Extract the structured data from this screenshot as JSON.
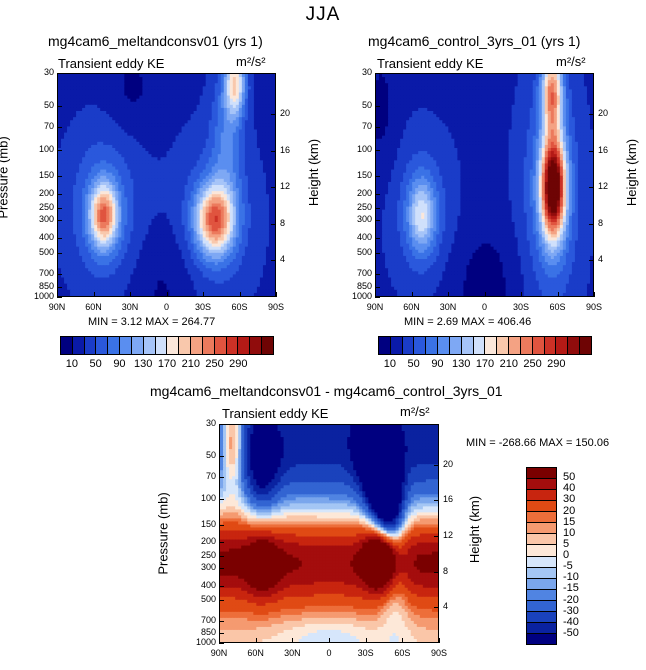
{
  "figure_title": "JJA",
  "chart_data": [
    {
      "type": "heatmap",
      "title": "mg4cam6_meltandconsv01 (yrs 1)",
      "subtitle": "Transient eddy KE",
      "units": "m²/s²",
      "ylabel_left": "Pressure (mb)",
      "ylabel_right": "Height (km)",
      "x_ticks": [
        "90N",
        "60N",
        "30N",
        "0",
        "30S",
        "60S",
        "90S"
      ],
      "y_ticks_left": [
        "30",
        "50",
        "70",
        "100",
        "150",
        "200",
        "250",
        "300",
        "400",
        "500",
        "700",
        "850",
        "1000"
      ],
      "y_ticks_right": [
        "20",
        "16",
        "12",
        "8",
        "4"
      ],
      "stats": "MIN =   3.12   MAX = 264.77",
      "features": [
        {
          "lat": 52,
          "p": 280,
          "value": 245
        },
        {
          "lat": -40,
          "p": 300,
          "value": 264.77
        },
        {
          "lat": -57,
          "p": 35,
          "value": 190
        },
        {
          "lat": 5,
          "p": 900,
          "value": 3.12
        }
      ]
    },
    {
      "type": "heatmap",
      "title": "mg4cam6_control_3yrs_01 (yrs 1)",
      "subtitle": "Transient eddy KE",
      "units": "m²/s²",
      "ylabel_left": "",
      "ylabel_right": "Height (km)",
      "x_ticks": [
        "90N",
        "60N",
        "30N",
        "0",
        "30S",
        "60S",
        "90S"
      ],
      "y_ticks_left": [
        "30",
        "50",
        "70",
        "100",
        "150",
        "200",
        "250",
        "300",
        "400",
        "500",
        "700",
        "850",
        "1000"
      ],
      "y_ticks_right": [
        "20",
        "16",
        "12",
        "8",
        "4"
      ],
      "stats": "MIN =   2.69   MAX = 406.46",
      "features": [
        {
          "lat": 52,
          "p": 280,
          "value": 160
        },
        {
          "lat": -57,
          "p": 180,
          "value": 406.46
        },
        {
          "lat": -56,
          "p": 40,
          "value": 230
        },
        {
          "lat": 5,
          "p": 900,
          "value": 2.69
        }
      ]
    },
    {
      "type": "heatmap",
      "title": "mg4cam6_meltandconsv01 - mg4cam6_control_3yrs_01",
      "subtitle": "Transient eddy KE",
      "units": "m²/s²",
      "ylabel_left": "Pressure (mb)",
      "ylabel_right": "Height (km)",
      "x_ticks": [
        "90N",
        "60N",
        "30N",
        "0",
        "30S",
        "60S",
        "90S"
      ],
      "y_ticks_left": [
        "30",
        "50",
        "70",
        "100",
        "150",
        "200",
        "250",
        "300",
        "400",
        "500",
        "700",
        "850",
        "1000"
      ],
      "y_ticks_right": [
        "20",
        "16",
        "12",
        "8",
        "4"
      ],
      "stats": "MIN = -268.66   MAX = 150.06",
      "features": [
        {
          "lat": -45,
          "p": 250,
          "value": 150.06
        },
        {
          "lat": -57,
          "p": 100,
          "value": -268.66
        },
        {
          "lat": 55,
          "p": 280,
          "value": 80
        },
        {
          "lat": 80,
          "p": 40,
          "value": 55
        }
      ]
    }
  ],
  "colorbar_abs": {
    "labels": [
      "10",
      "50",
      "90",
      "130",
      "170",
      "210",
      "250",
      "290"
    ],
    "colors": [
      "#000080",
      "#0a1aa8",
      "#1a3cc8",
      "#2a58dc",
      "#3a72e6",
      "#5a8ef0",
      "#7ea8f4",
      "#a6c4f8",
      "#d0e0fb",
      "#fbe7da",
      "#f9c8ac",
      "#f4a283",
      "#ec7a5d",
      "#e0543f",
      "#cc3126",
      "#b41a16",
      "#900c0c",
      "#6e0404"
    ]
  },
  "colorbar_diff": {
    "labels": [
      "50",
      "40",
      "30",
      "20",
      "15",
      "10",
      "5",
      "0",
      "-5",
      "-10",
      "-15",
      "-20",
      "-30",
      "-40",
      "-50"
    ],
    "colors": [
      "#7a0000",
      "#a40d0d",
      "#c8250f",
      "#e04a14",
      "#ed6e3a",
      "#f59a70",
      "#fac6a8",
      "#fde8d8",
      "#d6e6fb",
      "#a4c6f4",
      "#7aa6ec",
      "#5084e2",
      "#3264d2",
      "#1a42bc",
      "#0a22a0",
      "#000080"
    ]
  }
}
